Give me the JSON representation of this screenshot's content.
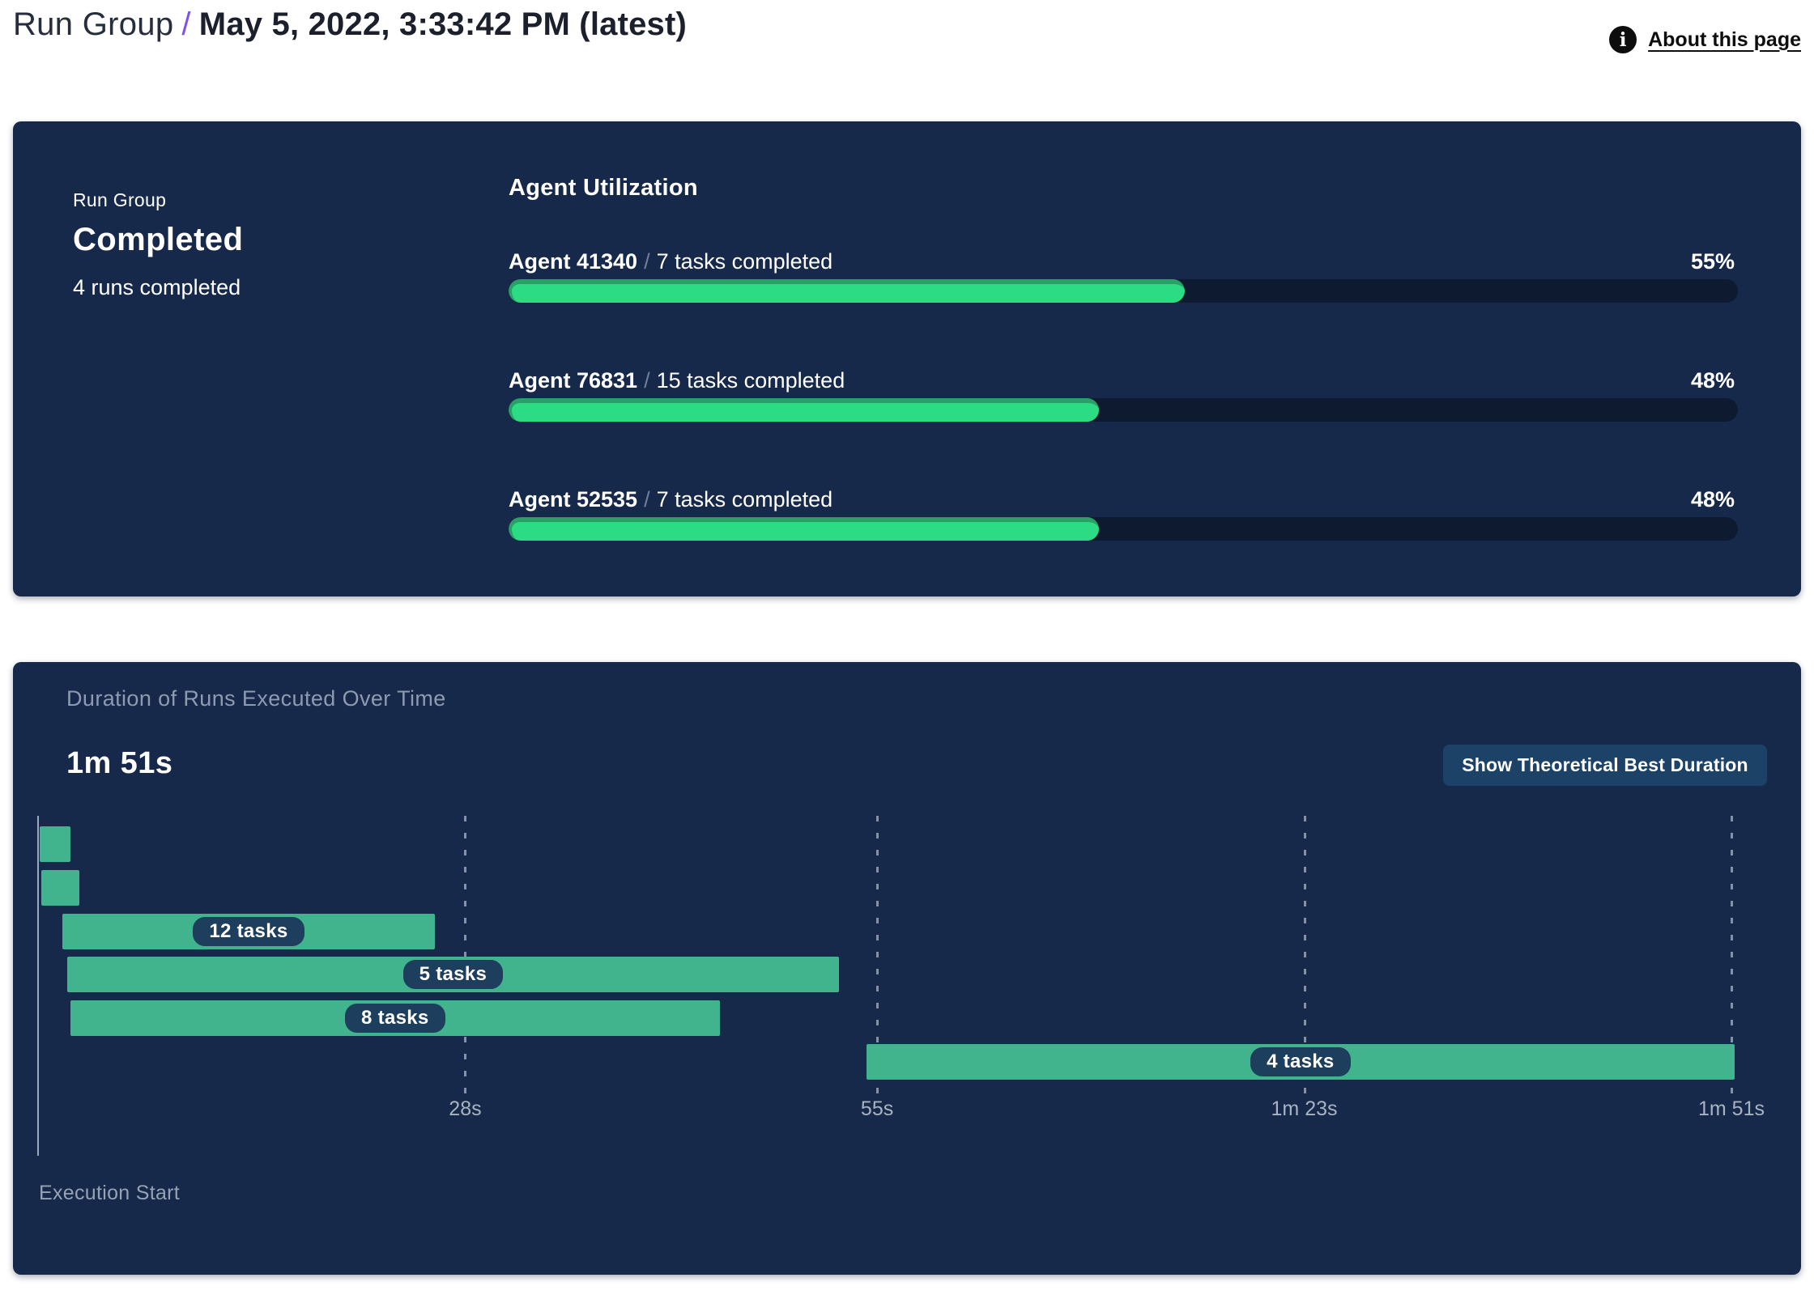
{
  "header": {
    "breadcrumb_root": "Run Group",
    "separator": "/",
    "title": "May 5, 2022, 3:33:42 PM (latest)",
    "about_link": "About this page",
    "info_icon_glyph": "i"
  },
  "run_group_panel": {
    "label": "Run Group",
    "status": "Completed",
    "runs_summary": "4 runs completed",
    "utilization_heading": "Agent Utilization"
  },
  "duration_panel": {
    "title": "Duration of Runs Executed Over Time",
    "total_duration": "1m 51s",
    "button_label": "Show Theoretical Best Duration",
    "origin_label": "Execution Start"
  },
  "chart_data": [
    {
      "type": "bar",
      "name": "agent_utilization",
      "title": "Agent Utilization",
      "orientation": "horizontal",
      "unit": "%",
      "xlim": [
        0,
        100
      ],
      "separator": "/",
      "series": [
        {
          "agent": "Agent 41340",
          "tasks_label": "7 tasks completed",
          "utilization_pct": 55
        },
        {
          "agent": "Agent 76831",
          "tasks_label": "15 tasks completed",
          "utilization_pct": 48
        },
        {
          "agent": "Agent 52535",
          "tasks_label": "7 tasks completed",
          "utilization_pct": 48
        }
      ]
    },
    {
      "type": "bar",
      "subtype": "gantt",
      "name": "run_durations",
      "title": "Duration of Runs Executed Over Time",
      "total_duration_label": "1m 51s",
      "time_axis": {
        "origin_label": "Execution Start",
        "max_seconds": 111,
        "ticks": [
          {
            "seconds": 28,
            "label": "28s"
          },
          {
            "seconds": 55,
            "label": "55s"
          },
          {
            "seconds": 83,
            "label": "1m 23s"
          },
          {
            "seconds": 111,
            "label": "1m 51s"
          }
        ]
      },
      "bars": [
        {
          "row": 0,
          "start_s": 0.1,
          "end_s": 2.1,
          "label": null
        },
        {
          "row": 1,
          "start_s": 0.2,
          "end_s": 2.7,
          "label": null
        },
        {
          "row": 2,
          "start_s": 1.6,
          "end_s": 26.0,
          "label": "12 tasks"
        },
        {
          "row": 3,
          "start_s": 1.9,
          "end_s": 52.5,
          "label": "5 tasks"
        },
        {
          "row": 4,
          "start_s": 2.1,
          "end_s": 44.7,
          "label": "8 tasks"
        },
        {
          "row": 5,
          "start_s": 54.3,
          "end_s": 111.2,
          "label": "4 tasks"
        }
      ]
    }
  ],
  "colors": {
    "page_bg": "#FFFFFF",
    "panel_bg": "#17294A",
    "accent_slash": "#7B52F0",
    "progress_fill": "#2CDC85",
    "progress_fill_edge": "#28A066",
    "progress_track": "#0D1A2F",
    "gantt_bar": "#41B48D",
    "pill_bg": "#1E3E5E",
    "button_bg": "#1D4268",
    "muted_text": "#8C9BB0",
    "tick_text": "#A8B3C2"
  }
}
